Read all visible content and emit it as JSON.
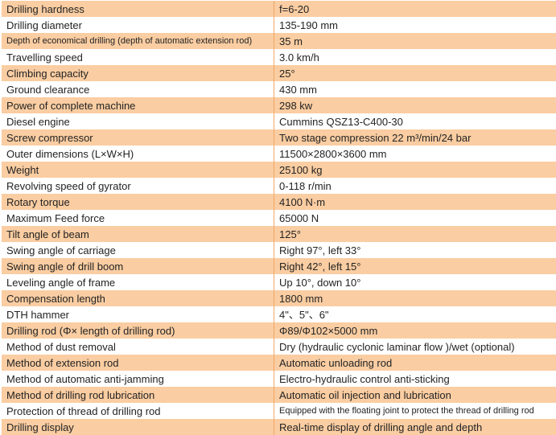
{
  "table": {
    "name": "drilling-rig-specifications",
    "columns": [
      "parameter",
      "value"
    ],
    "rows": [
      {
        "label": "Drilling hardness",
        "value": "f=6-20"
      },
      {
        "label": "Drilling diameter",
        "value": "135-190 mm"
      },
      {
        "label": "Depth of economical drilling (depth of automatic extension rod)",
        "value": "35 m",
        "label_small": true
      },
      {
        "label": "Travelling speed",
        "value": "3.0 km/h"
      },
      {
        "label": "Climbing capacity",
        "value": "25°"
      },
      {
        "label": "Ground clearance",
        "value": "430 mm"
      },
      {
        "label": "Power of complete machine",
        "value": "298 kw"
      },
      {
        "label": "Diesel engine",
        "value": "Cummins QSZ13-C400-30"
      },
      {
        "label": "Screw compressor",
        "value": "Two stage compression 22 m³/min/24 bar"
      },
      {
        "label": "Outer dimensions (L×W×H)",
        "value": "11500×2800×3600 mm"
      },
      {
        "label": "Weight",
        "value": "25100 kg"
      },
      {
        "label": "Revolving speed of gyrator",
        "value": "0-118 r/min"
      },
      {
        "label": "Rotary torque",
        "value": "4100 N·m"
      },
      {
        "label": "Maximum Feed force",
        "value": "65000 N"
      },
      {
        "label": "Tilt angle of beam",
        "value": "125°"
      },
      {
        "label": "Swing angle of carriage",
        "value": "Right 97°, left 33°"
      },
      {
        "label": "Swing angle of drill boom",
        "value": "Right 42°, left 15°"
      },
      {
        "label": "Leveling angle of frame",
        "value": "Up 10°, down 10°"
      },
      {
        "label": "Compensation length",
        "value": "1800 mm"
      },
      {
        "label": "DTH hammer",
        "value": "4\"、5\"、6\""
      },
      {
        "label": "Drilling rod (Φ× length of drilling rod)",
        "value": "Φ89/Φ102×5000 mm"
      },
      {
        "label": "Method of dust removal",
        "value": "Dry (hydraulic cyclonic laminar flow )/wet (optional)"
      },
      {
        "label": "Method of extension rod",
        "value": "Automatic unloading rod"
      },
      {
        "label": "Method of automatic anti-jamming",
        "value": "Electro-hydraulic control anti-sticking"
      },
      {
        "label": "Method of drilling rod lubrication",
        "value": "Automatic oil injection and lubrication"
      },
      {
        "label": "Protection of thread of drilling rod",
        "value": "Equipped with the floating joint to protect the thread of drilling rod",
        "value_small": true
      },
      {
        "label": "Drilling display",
        "value": "Real-time display of drilling angle and depth"
      }
    ]
  },
  "colors": {
    "row_orange": "#facda2",
    "row_white": "#ffffff",
    "border": "#f0a868",
    "text": "#232323"
  }
}
